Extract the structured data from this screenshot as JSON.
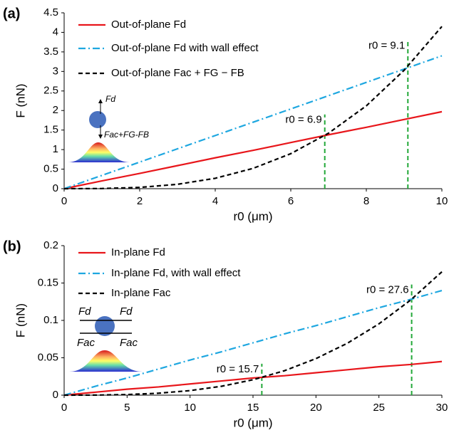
{
  "chart_data": [
    {
      "type": "line",
      "panel_label": "(a)",
      "x_label": "r0 (μm)",
      "y_label": "F (nN)",
      "x": [
        0,
        1,
        2,
        3,
        4,
        5,
        6,
        7,
        8,
        9,
        10
      ],
      "series": [
        {
          "name": "Out-of-plane Fd",
          "color": "#e8161b",
          "style": "solid",
          "values": [
            0,
            0.2,
            0.39,
            0.59,
            0.79,
            0.98,
            1.18,
            1.38,
            1.57,
            1.77,
            1.97
          ]
        },
        {
          "name": "Out-of-plane Fd with wall effect",
          "color": "#1ea7e0",
          "style": "dashdot",
          "values": [
            0,
            0.34,
            0.68,
            1.02,
            1.36,
            1.7,
            2.04,
            2.38,
            2.72,
            3.06,
            3.4
          ]
        },
        {
          "name": "Out-of-plane Fac + FG − FB",
          "color": "#000000",
          "style": "dashed",
          "values": [
            0,
            0.004,
            0.033,
            0.112,
            0.266,
            0.519,
            0.896,
            1.42,
            2.12,
            3.03,
            4.15
          ]
        }
      ],
      "markers": [
        {
          "label": "r0 = 6.9",
          "x": 6.9,
          "y_top": 1.9
        },
        {
          "label": "r0 = 9.1",
          "x": 9.1,
          "y_top": 3.8
        }
      ],
      "marker_color": "#22a838",
      "inset_labels": [
        "Fd",
        "Fac+FG-FB"
      ],
      "xlim": [
        0,
        10
      ],
      "xticks": [
        0,
        2,
        4,
        6,
        8,
        10
      ],
      "ylim": [
        0,
        4.5
      ],
      "yticks": [
        0,
        0.5,
        1,
        1.5,
        2,
        2.5,
        3,
        3.5,
        4,
        4.5
      ],
      "grid": false
    },
    {
      "type": "line",
      "panel_label": "(b)",
      "x_label": "r0 (μm)",
      "y_label": "F (nN)",
      "x": [
        0,
        2.5,
        5,
        7.5,
        10,
        12.5,
        15,
        17.5,
        20,
        22.5,
        25,
        27.5,
        30
      ],
      "series": [
        {
          "name": "In-plane Fd",
          "color": "#e8161b",
          "style": "solid",
          "values": [
            0,
            0.004,
            0.008,
            0.011,
            0.015,
            0.019,
            0.023,
            0.026,
            0.03,
            0.034,
            0.038,
            0.041,
            0.045
          ]
        },
        {
          "name": "In-plane Fd, with wall effect",
          "color": "#1ea7e0",
          "style": "dashdot",
          "values": [
            0,
            0.012,
            0.023,
            0.035,
            0.047,
            0.058,
            0.07,
            0.082,
            0.093,
            0.105,
            0.117,
            0.128,
            0.14
          ]
        },
        {
          "name": "In-plane Fac",
          "color": "#000000",
          "style": "dashed",
          "values": [
            0,
            0.0001,
            0.0008,
            0.0026,
            0.0061,
            0.0119,
            0.0206,
            0.0327,
            0.0489,
            0.0695,
            0.0954,
            0.127,
            0.165
          ]
        }
      ],
      "markers": [
        {
          "label": "r0 = 15.7",
          "x": 15.7,
          "y_top": 0.042
        },
        {
          "label": "r0 = 27.6",
          "x": 27.6,
          "y_top": 0.148
        }
      ],
      "marker_color": "#22a838",
      "inset_labels": [
        "Fd",
        "Fd",
        "Fac",
        "Fac"
      ],
      "xlim": [
        0,
        30
      ],
      "xticks": [
        0,
        5,
        10,
        15,
        20,
        25,
        30
      ],
      "ylim": [
        0,
        0.2
      ],
      "yticks": [
        0,
        0.05,
        0.1,
        0.15,
        0.2
      ],
      "grid": false
    }
  ]
}
